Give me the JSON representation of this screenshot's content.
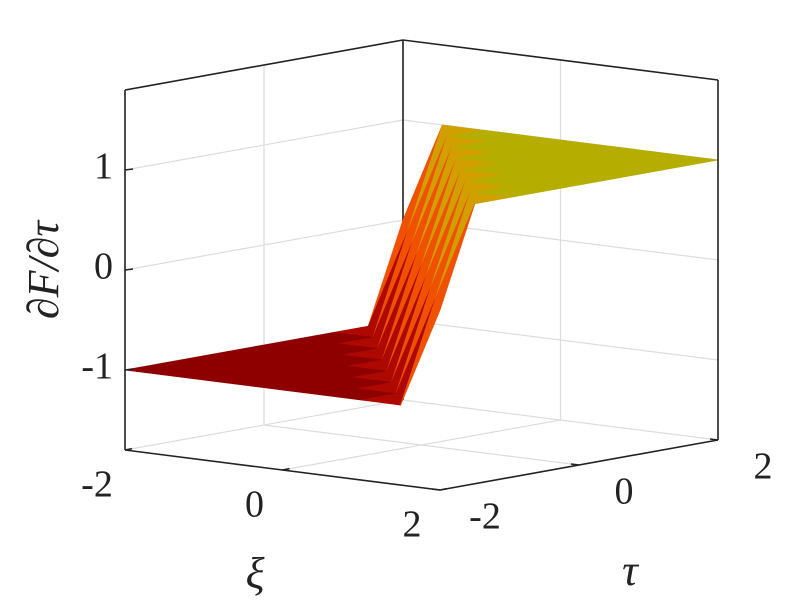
{
  "chart_data": {
    "type": "surface",
    "xlabel": "ξ",
    "ylabel": "τ",
    "zlabel": "∂F/∂τ",
    "x": [
      -2,
      -1.5,
      -1,
      -0.5,
      0,
      0.5,
      1,
      1.5,
      2
    ],
    "y": [
      -2,
      -1.5,
      -1,
      -0.5,
      0,
      0.5,
      1,
      1.5,
      2
    ],
    "z": [
      [
        -1,
        -1,
        -1,
        -1,
        -1,
        -1,
        -1,
        -1,
        0
      ],
      [
        -1,
        -1,
        -1,
        -1,
        -1,
        -1,
        -1,
        0,
        1
      ],
      [
        -1,
        -1,
        -1,
        -1,
        -1,
        -1,
        0,
        1,
        1
      ],
      [
        -1,
        -1,
        -1,
        -1,
        -1,
        0,
        1,
        1,
        1
      ],
      [
        -1,
        -1,
        -1,
        -1,
        0,
        1,
        1,
        1,
        1
      ],
      [
        -1,
        -1,
        -1,
        0,
        1,
        1,
        1,
        1,
        1
      ],
      [
        -1,
        -1,
        0,
        1,
        1,
        1,
        1,
        1,
        1
      ],
      [
        -1,
        0,
        1,
        1,
        1,
        1,
        1,
        1,
        1
      ],
      [
        0,
        1,
        1,
        1,
        1,
        1,
        1,
        1,
        1
      ]
    ],
    "xlim": [
      -2,
      2
    ],
    "ylim": [
      -2,
      2
    ],
    "zlim": [
      -1.8,
      1.8
    ],
    "xticks": [
      -2,
      0,
      2
    ],
    "yticks": [
      -2,
      0,
      2
    ],
    "zticks": [
      -1,
      0,
      1
    ],
    "grid": true,
    "colormap": [
      "#8e0000",
      "#e01800",
      "#ff8a00",
      "#b5ad00"
    ]
  }
}
